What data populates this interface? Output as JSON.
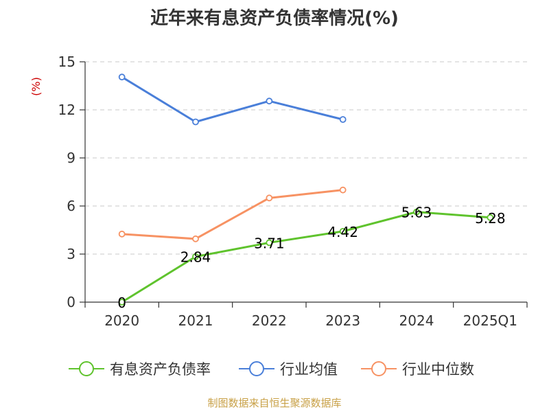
{
  "chart_data": {
    "type": "line",
    "title": "近年来有息资产负债率情况(%)",
    "ylabel": "(%)",
    "xlabel": "",
    "categories": [
      "2020",
      "2021",
      "2022",
      "2023",
      "2024",
      "2025Q1"
    ],
    "ylim": [
      0,
      15
    ],
    "yticks": [
      "0",
      "3",
      "6",
      "9",
      "12",
      "15"
    ],
    "grid": true,
    "legend_position": "bottom",
    "series": [
      {
        "name": "有息资产负债率",
        "color": "#5fc32d",
        "values": [
          0,
          2.84,
          3.71,
          4.42,
          5.63,
          5.28
        ],
        "labels": [
          "0",
          "2.84",
          "3.71",
          "4.42",
          "5.63",
          "5.28"
        ]
      },
      {
        "name": "行业均值",
        "color": "#4a7fd9",
        "values": [
          14.05,
          11.25,
          12.55,
          11.4,
          null,
          null
        ]
      },
      {
        "name": "行业中位数",
        "color": "#f79263",
        "values": [
          4.25,
          3.95,
          6.5,
          7.0,
          null,
          null
        ]
      }
    ]
  },
  "footer": {
    "source": "制图数据来自恒生聚源数据库"
  }
}
